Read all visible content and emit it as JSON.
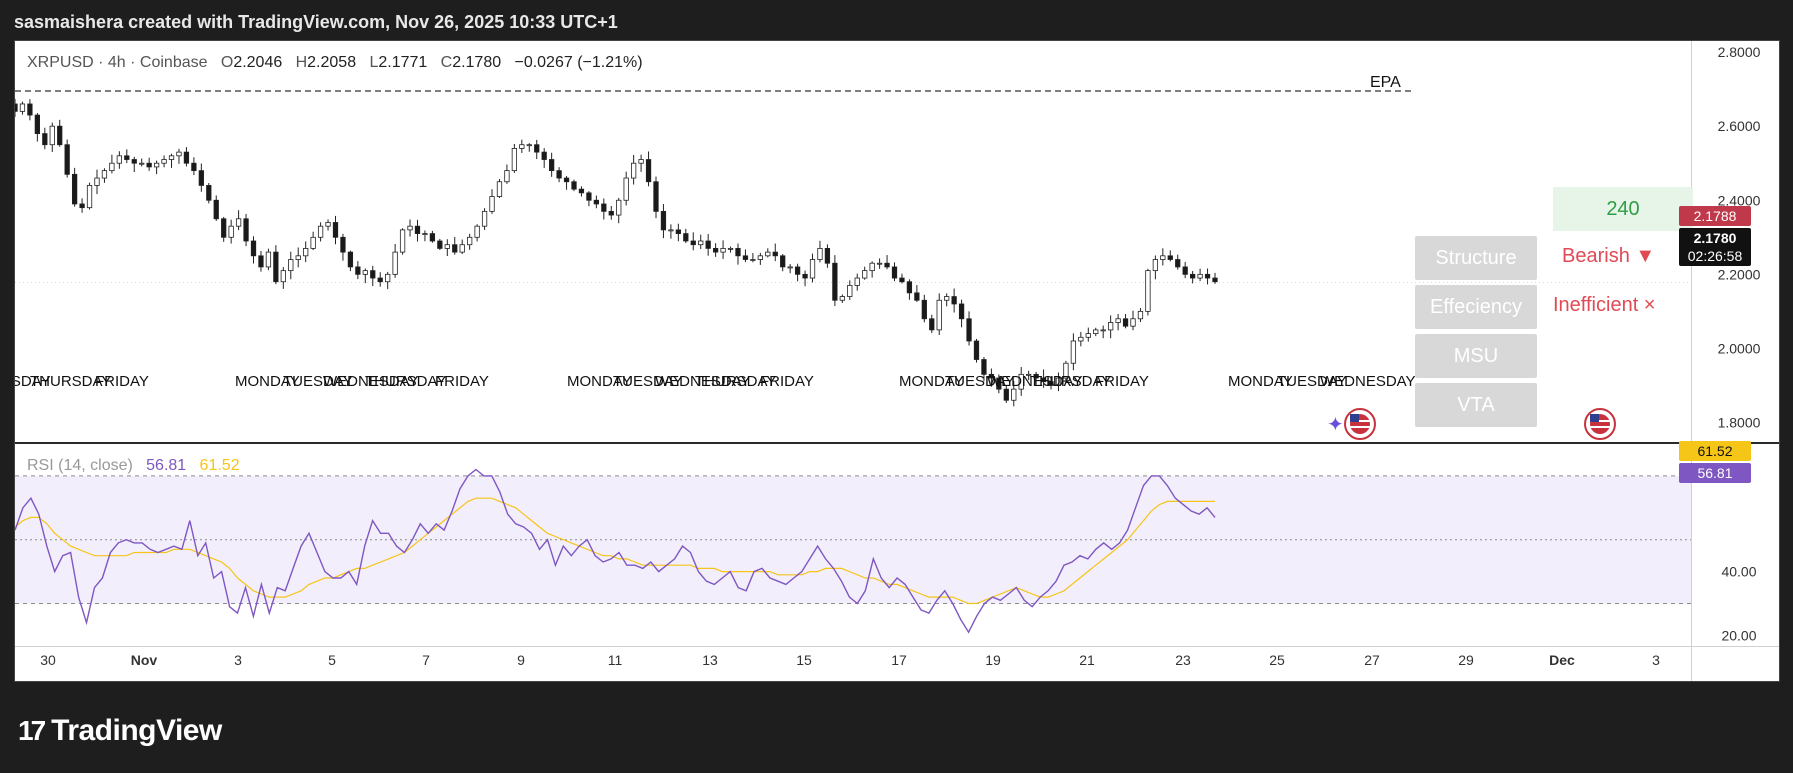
{
  "header": {
    "title": "sasmaishera created with TradingView.com, Nov 26, 2025 10:33 UTC+1"
  },
  "legend": {
    "symbol": "XRPUSD · 4h · Coinbase",
    "o_label": "O",
    "o_value": "2.2046",
    "h_label": "H",
    "h_value": "2.2058",
    "l_label": "L",
    "l_value": "2.1771",
    "c_label": "C",
    "c_value": "2.1780",
    "change": "−0.0267 (−1.21%)"
  },
  "rsi_legend": {
    "label": "RSI (14, close)",
    "value": "56.81",
    "ma_value": "61.52"
  },
  "price_tags": {
    "red": "2.1788",
    "last": "2.1780",
    "countdown": "02:26:58",
    "rsi_ma": "61.52",
    "rsi": "56.81"
  },
  "level_label": "EPA",
  "panel": {
    "value": "240",
    "structure": "Structure",
    "structure_state": "Bearish ▼",
    "efficiency": "Effeciency",
    "efficiency_state": "Inefficient ×",
    "msu": "MSU",
    "vta": "VTA"
  },
  "colors": {
    "background": "#1e1e1e",
    "bullish_candle": "#ffffff",
    "bearish_candle": "#1a1a1a",
    "rsi_line": "#7e57c2",
    "rsi_ma_line": "#f5c518",
    "bearish_label": "#e04a55",
    "value_green": "#2e9e45"
  },
  "icons": [
    "usa-flag-icon",
    "sparkle-icon"
  ],
  "brand": {
    "name": "TradingView"
  },
  "chart_data": [
    {
      "type": "candlestick",
      "title": "XRPUSD · 4h · Coinbase",
      "ylim": [
        1.75,
        2.83
      ],
      "y_ticks": [
        "2.8000",
        "2.6000",
        "2.4000",
        "2.2000",
        "2.0000",
        "1.8000"
      ],
      "x_ticks": [
        "30",
        "Nov",
        "3",
        "5",
        "7",
        "9",
        "11",
        "13",
        "15",
        "17",
        "19",
        "21",
        "23",
        "25",
        "27",
        "29",
        "Dec",
        "3"
      ],
      "epa_level": 2.695,
      "day_labels": [
        {
          "text": "NESDAY",
          "week": 1
        },
        {
          "text": "THURSDAY",
          "week": 1
        },
        {
          "text": "FRIDAY",
          "week": 1
        },
        {
          "text": "MONDAY",
          "week": 2
        },
        {
          "text": "TUESDAY",
          "week": 2
        },
        {
          "text": "WEDNESDAY",
          "week": 2
        },
        {
          "text": "THURSDAY",
          "week": 2
        },
        {
          "text": "FRIDAY",
          "week": 2
        },
        {
          "text": "MONDAY",
          "week": 3
        },
        {
          "text": "TUESDAY",
          "week": 3
        },
        {
          "text": "WEDNESDAY",
          "week": 3
        },
        {
          "text": "THURSDAY",
          "week": 3
        },
        {
          "text": "FRIDAY",
          "week": 3
        },
        {
          "text": "MONDAY",
          "week": 4
        },
        {
          "text": "TUESDAY",
          "week": 4
        },
        {
          "text": "WEDNESDAY",
          "week": 4
        },
        {
          "text": "THURSDAY",
          "week": 4
        },
        {
          "text": "FRIDAY",
          "week": 4
        },
        {
          "text": "MONDAY",
          "week": 5
        },
        {
          "text": "TUESDAY",
          "week": 5
        },
        {
          "text": "WEDNESDAY",
          "week": 5
        }
      ],
      "close_path": [
        2.64,
        2.66,
        2.63,
        2.58,
        2.55,
        2.6,
        2.55,
        2.47,
        2.39,
        2.38,
        2.44,
        2.46,
        2.48,
        2.5,
        2.52,
        2.51,
        2.5,
        2.5,
        2.49,
        2.5,
        2.51,
        2.52,
        2.53,
        2.5,
        2.48,
        2.44,
        2.4,
        2.35,
        2.3,
        2.33,
        2.35,
        2.29,
        2.25,
        2.22,
        2.26,
        2.18,
        2.21,
        2.24,
        2.25,
        2.27,
        2.3,
        2.33,
        2.34,
        2.3,
        2.26,
        2.22,
        2.2,
        2.21,
        2.19,
        2.18,
        2.2,
        2.26,
        2.32,
        2.33,
        2.31,
        2.31,
        2.29,
        2.27,
        2.28,
        2.26,
        2.28,
        2.3,
        2.33,
        2.37,
        2.41,
        2.45,
        2.48,
        2.54,
        2.55,
        2.55,
        2.53,
        2.51,
        2.48,
        2.46,
        2.45,
        2.43,
        2.42,
        2.4,
        2.39,
        2.37,
        2.36,
        2.4,
        2.46,
        2.5,
        2.51,
        2.45,
        2.37,
        2.32,
        2.32,
        2.31,
        2.29,
        2.28,
        2.29,
        2.27,
        2.26,
        2.27,
        2.27,
        2.25,
        2.24,
        2.24,
        2.25,
        2.26,
        2.25,
        2.22,
        2.22,
        2.2,
        2.19,
        2.24,
        2.27,
        2.23,
        2.13,
        2.14,
        2.17,
        2.19,
        2.21,
        2.23,
        2.23,
        2.22,
        2.19,
        2.18,
        2.15,
        2.13,
        2.08,
        2.05,
        2.13,
        2.14,
        2.12,
        2.08,
        2.02,
        1.97,
        1.93,
        1.92,
        1.89,
        1.86,
        1.89,
        1.93,
        1.93,
        1.92,
        1.91,
        1.9,
        1.92,
        1.96,
        2.02,
        2.03,
        2.04,
        2.05,
        2.05,
        2.07,
        2.08,
        2.06,
        2.08,
        2.1,
        2.21,
        2.24,
        2.25,
        2.24,
        2.22,
        2.2,
        2.19,
        2.2,
        2.19,
        2.18
      ]
    },
    {
      "type": "line",
      "title": "RSI (14, close)",
      "ylim": [
        17,
        80
      ],
      "y_ticks": [
        "40.00",
        "20.00"
      ],
      "bands": [
        70,
        50,
        30
      ],
      "series": [
        {
          "name": "RSI",
          "values": [
            53,
            60,
            63,
            58,
            48,
            40,
            45,
            46,
            32,
            24,
            35,
            38,
            46,
            49,
            50,
            49,
            49,
            47,
            46,
            47,
            48,
            47,
            56,
            45,
            49,
            38,
            40,
            29,
            27,
            35,
            26,
            36,
            27,
            35,
            34,
            41,
            48,
            52,
            46,
            40,
            38,
            38,
            40,
            36,
            48,
            56,
            52,
            52,
            48,
            46,
            50,
            55,
            52,
            55,
            53,
            59,
            66,
            70,
            72,
            70,
            70,
            65,
            58,
            55,
            54,
            52,
            47,
            50,
            42,
            48,
            45,
            48,
            50,
            45,
            43,
            44,
            46,
            42,
            42,
            41,
            43,
            40,
            42,
            44,
            48,
            46,
            40,
            37,
            36,
            38,
            40,
            35,
            34,
            40,
            41,
            38,
            37,
            36,
            38,
            40,
            44,
            48,
            44,
            41,
            37,
            32,
            30,
            34,
            44,
            38,
            35,
            38,
            36,
            32,
            28,
            27,
            31,
            34,
            30,
            25,
            21,
            26,
            30,
            32,
            31,
            33,
            35,
            31,
            29,
            32,
            34,
            37,
            42,
            43,
            45,
            44,
            47,
            49,
            47,
            49,
            53,
            60,
            67,
            70,
            70,
            67,
            63,
            61,
            59,
            58,
            60,
            57
          ]
        },
        {
          "name": "RSI MA",
          "values": [
            54,
            56,
            57,
            57,
            55,
            52,
            50,
            48,
            47,
            46,
            45,
            45,
            45,
            45,
            45,
            46,
            46,
            46,
            46,
            46,
            47,
            47,
            47,
            46,
            45,
            44,
            43,
            41,
            38,
            36,
            34,
            33,
            32,
            32,
            32,
            33,
            34,
            36,
            37,
            38,
            38,
            39,
            40,
            41,
            41,
            42,
            43,
            44,
            45,
            46,
            48,
            50,
            52,
            54,
            56,
            58,
            60,
            62,
            63,
            63,
            63,
            62,
            61,
            60,
            58,
            56,
            54,
            52,
            51,
            50,
            49,
            48,
            47,
            46,
            45,
            45,
            44,
            44,
            43,
            42,
            42,
            42,
            42,
            42,
            42,
            42,
            41,
            41,
            41,
            40,
            40,
            40,
            40,
            40,
            40,
            40,
            39,
            39,
            39,
            39,
            40,
            40,
            41,
            41,
            41,
            40,
            39,
            38,
            38,
            37,
            36,
            36,
            35,
            34,
            33,
            32,
            32,
            32,
            32,
            31,
            30,
            30,
            31,
            32,
            33,
            34,
            35,
            34,
            33,
            32,
            32,
            33,
            34,
            36,
            38,
            40,
            42,
            44,
            46,
            48,
            50,
            53,
            56,
            59,
            61,
            62,
            62,
            62,
            62,
            62,
            62,
            62
          ]
        }
      ]
    }
  ]
}
